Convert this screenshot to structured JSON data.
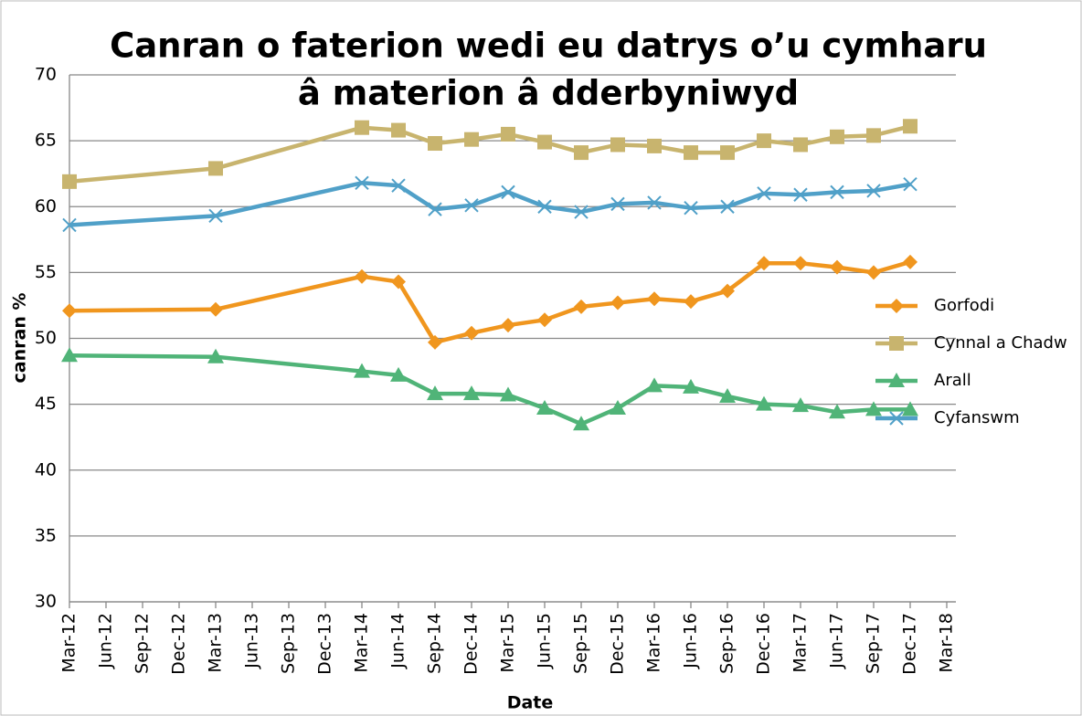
{
  "chart_data": {
    "type": "line",
    "title": [
      "Canran o faterion wedi eu datrys o’u cymharu",
      "â materion â dderbyniwyd"
    ],
    "x_label": "Date",
    "y_label": "canran %",
    "x": [
      "2012-03",
      "2013-03",
      "2014-03",
      "2014-06",
      "2014-09",
      "2014-12",
      "2015-03",
      "2015-06",
      "2015-09",
      "2015-12",
      "2016-03",
      "2016-06",
      "2016-09",
      "2016-12",
      "2017-03",
      "2017-06",
      "2017-09",
      "2017-12"
    ],
    "series": [
      {
        "name": "Gorfodi",
        "color": "#f0961e",
        "marker": "diamond",
        "values": [
          52.1,
          52.2,
          54.7,
          54.3,
          49.7,
          50.4,
          51.0,
          51.4,
          52.4,
          52.7,
          53.0,
          52.8,
          53.6,
          55.7,
          55.7,
          55.4,
          55.0,
          55.8
        ]
      },
      {
        "name": "Cynnal a Chadw",
        "color": "#c8b46e",
        "marker": "square",
        "values": [
          61.9,
          62.9,
          66.0,
          65.8,
          64.8,
          65.1,
          65.5,
          64.9,
          64.1,
          64.7,
          64.6,
          64.1,
          64.1,
          65.0,
          64.7,
          65.3,
          65.4,
          66.1
        ]
      },
      {
        "name": "Arall",
        "color": "#50b478",
        "marker": "triangle",
        "values": [
          48.7,
          48.6,
          47.5,
          47.2,
          45.8,
          45.8,
          45.7,
          44.7,
          43.5,
          44.7,
          46.4,
          46.3,
          45.6,
          45.0,
          44.9,
          44.4,
          44.6,
          44.6
        ]
      },
      {
        "name": "Cyfanswm",
        "color": "#50a0c8",
        "marker": "x",
        "values": [
          58.6,
          59.3,
          61.8,
          61.6,
          59.8,
          60.1,
          61.1,
          60.0,
          59.6,
          60.2,
          60.3,
          59.9,
          60.0,
          61.0,
          60.9,
          61.1,
          61.2,
          61.7
        ]
      }
    ],
    "xlim": [
      "2012-03",
      "2018-03"
    ],
    "xticks": [
      {
        "value": "2012-03",
        "label": "Mar-12"
      },
      {
        "value": "2012-06",
        "label": "Jun-12"
      },
      {
        "value": "2012-09",
        "label": "Sep-12"
      },
      {
        "value": "2012-12",
        "label": "Dec-12"
      },
      {
        "value": "2013-03",
        "label": "Mar-13"
      },
      {
        "value": "2013-06",
        "label": "Jun-13"
      },
      {
        "value": "2013-09",
        "label": "Sep-13"
      },
      {
        "value": "2013-12",
        "label": "Dec-13"
      },
      {
        "value": "2014-03",
        "label": "Mar-14"
      },
      {
        "value": "2014-06",
        "label": "Jun-14"
      },
      {
        "value": "2014-09",
        "label": "Sep-14"
      },
      {
        "value": "2014-12",
        "label": "Dec-14"
      },
      {
        "value": "2015-03",
        "label": "Mar-15"
      },
      {
        "value": "2015-06",
        "label": "Jun-15"
      },
      {
        "value": "2015-09",
        "label": "Sep-15"
      },
      {
        "value": "2015-12",
        "label": "Dec-15"
      },
      {
        "value": "2016-03",
        "label": "Mar-16"
      },
      {
        "value": "2016-06",
        "label": "Jun-16"
      },
      {
        "value": "2016-09",
        "label": "Sep-16"
      },
      {
        "value": "2016-12",
        "label": "Dec-16"
      },
      {
        "value": "2017-03",
        "label": "Mar-17"
      },
      {
        "value": "2017-06",
        "label": "Jun-17"
      },
      {
        "value": "2017-09",
        "label": "Sep-17"
      },
      {
        "value": "2017-12",
        "label": "Dec-17"
      },
      {
        "value": "2018-03",
        "label": "Mar-18"
      }
    ],
    "ylim": [
      30,
      70
    ],
    "yticks": [
      30,
      35,
      40,
      45,
      50,
      55,
      60,
      65,
      70
    ],
    "grid": true,
    "legend": "right"
  }
}
